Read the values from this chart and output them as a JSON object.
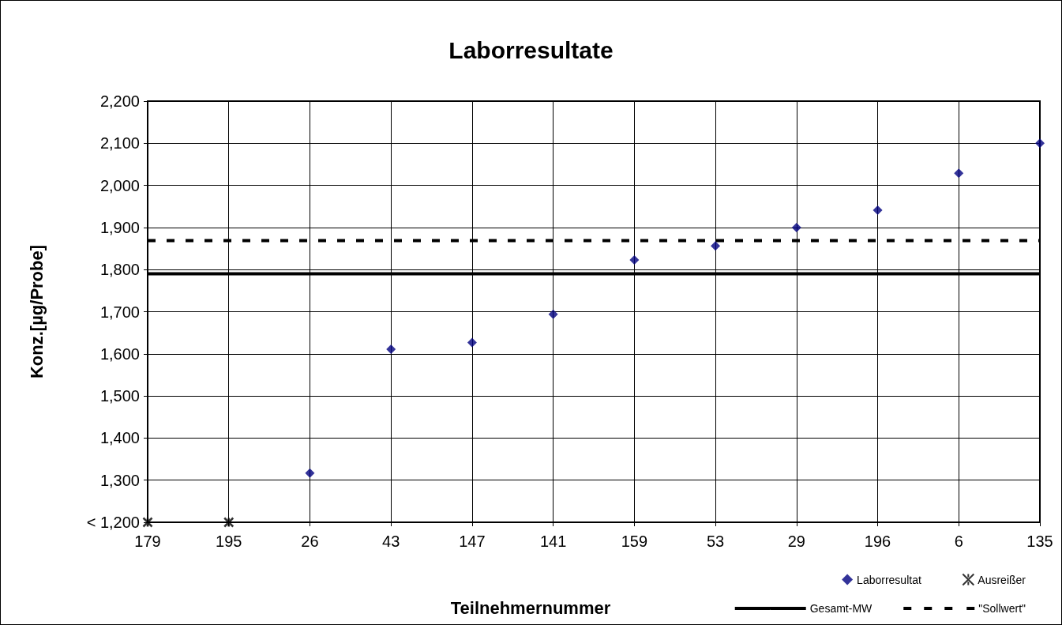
{
  "chart_data": {
    "type": "scatter",
    "title": "Laborresultate",
    "xlabel": "Teilnehmernummer",
    "ylabel": "Konz.[µg/Probe]",
    "categories": [
      "179",
      "195",
      "26",
      "43",
      "147",
      "141",
      "159",
      "53",
      "29",
      "196",
      "6",
      "135"
    ],
    "series": [
      {
        "name": "Laborresultat",
        "color": "#000080",
        "marker": "diamond",
        "values": [
          null,
          null,
          1317,
          1611,
          1627,
          1694,
          1823,
          1856,
          1900,
          1941,
          2029,
          2100
        ]
      },
      {
        "name": "Ausreißer",
        "color": "#000000",
        "marker": "cross",
        "values": [
          1200,
          1200,
          null,
          null,
          null,
          null,
          null,
          null,
          null,
          null,
          null,
          null
        ]
      }
    ],
    "ref_lines": [
      {
        "axis": "y",
        "value": 1790,
        "label": "Gesamt-MW",
        "color": "#000000",
        "line_style": "solid"
      },
      {
        "axis": "y",
        "value": 1869,
        "label": "\"Sollwert\"",
        "color": "#000000",
        "line_style": "dashed"
      }
    ],
    "ylim": [
      1200,
      2200
    ],
    "yticks": [
      {
        "value": 1200,
        "label": "< 1,200"
      },
      {
        "value": 1300,
        "label": "1,300"
      },
      {
        "value": 1400,
        "label": "1,400"
      },
      {
        "value": 1500,
        "label": "1,500"
      },
      {
        "value": 1600,
        "label": "1,600"
      },
      {
        "value": 1700,
        "label": "1,700"
      },
      {
        "value": 1800,
        "label": "1,800"
      },
      {
        "value": 1900,
        "label": "1,900"
      },
      {
        "value": 2000,
        "label": "2,000"
      },
      {
        "value": 2100,
        "label": "2,100"
      },
      {
        "value": 2200,
        "label": "2,200"
      }
    ],
    "grid": true,
    "legend": "bottom right"
  }
}
